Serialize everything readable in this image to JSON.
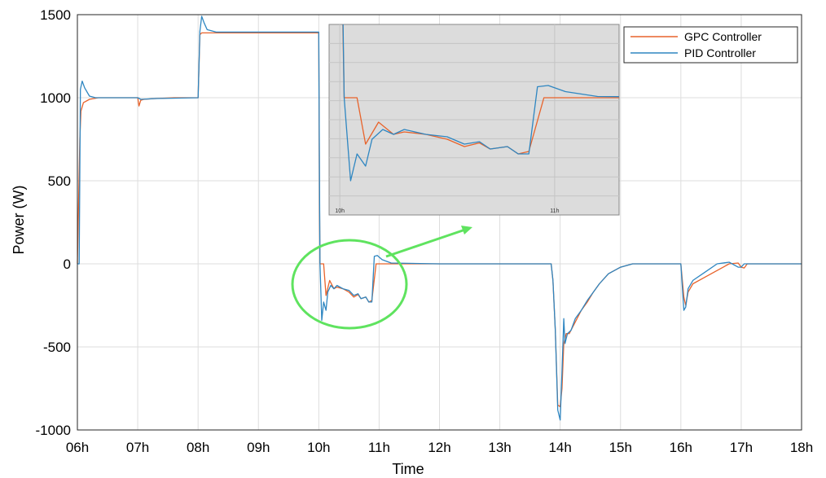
{
  "chart_data": {
    "type": "line",
    "xlabel": "Time",
    "ylabel": "Power (W)",
    "xlim": [
      6,
      18
    ],
    "ylim": [
      -1000,
      1500
    ],
    "x_ticks": [
      6,
      7,
      8,
      9,
      10,
      11,
      12,
      13,
      14,
      15,
      16,
      17,
      18
    ],
    "x_tick_labels": [
      "06h",
      "07h",
      "08h",
      "09h",
      "10h",
      "11h",
      "12h",
      "13h",
      "14h",
      "15h",
      "16h",
      "17h",
      "18h"
    ],
    "y_ticks": [
      -1000,
      -500,
      0,
      500,
      1000,
      1500
    ],
    "y_tick_labels": [
      "-1000",
      "-500",
      "0",
      "500",
      "1000",
      "1500"
    ],
    "grid": true,
    "legend_position": "top-right",
    "series": [
      {
        "name": "GPC Controller",
        "color": "#e8632b",
        "x": [
          6.0,
          6.04,
          6.06,
          6.1,
          6.2,
          6.35,
          6.6,
          7.0,
          7.02,
          7.05,
          7.1,
          7.3,
          7.6,
          7.9,
          8.0,
          8.03,
          8.06,
          8.2,
          9.0,
          9.99,
          10.0,
          10.01,
          10.02,
          10.04,
          10.05,
          10.08,
          10.12,
          10.18,
          10.25,
          10.3,
          10.4,
          10.5,
          10.58,
          10.65,
          10.7,
          10.78,
          10.83,
          10.88,
          10.95,
          11.0,
          11.5,
          12.0,
          13.0,
          13.85,
          13.88,
          13.92,
          13.96,
          14.0,
          14.03,
          14.06,
          14.1,
          14.15,
          14.25,
          14.35,
          14.45,
          14.55,
          14.65,
          14.8,
          15.0,
          15.2,
          15.4,
          15.8,
          16.0,
          16.05,
          16.08,
          16.12,
          16.2,
          16.4,
          16.6,
          16.8,
          16.95,
          17.0,
          17.05,
          17.1,
          17.5,
          18.0
        ],
        "y": [
          0,
          750,
          920,
          970,
          990,
          1000,
          1000,
          1000,
          950,
          985,
          990,
          995,
          1000,
          1000,
          1000,
          1380,
          1390,
          1390,
          1390,
          1390,
          1390,
          500,
          0,
          0,
          0,
          0,
          -190,
          -100,
          -150,
          -140,
          -150,
          -170,
          -200,
          -185,
          -210,
          -200,
          -230,
          -220,
          0,
          0,
          0,
          0,
          0,
          0,
          -100,
          -400,
          -850,
          -860,
          -750,
          -480,
          -420,
          -420,
          -350,
          -280,
          -230,
          -170,
          -120,
          -60,
          -20,
          0,
          0,
          0,
          0,
          -200,
          -250,
          -170,
          -120,
          -80,
          -40,
          0,
          5,
          -20,
          -25,
          0,
          0,
          0
        ]
      },
      {
        "name": "PID Controller",
        "color": "#2e86c1",
        "x": [
          6.0,
          6.03,
          6.05,
          6.08,
          6.12,
          6.2,
          6.3,
          6.6,
          7.0,
          7.05,
          7.3,
          8.0,
          8.03,
          8.06,
          8.1,
          8.15,
          8.3,
          9.0,
          9.99,
          10.0,
          10.01,
          10.02,
          10.05,
          10.08,
          10.12,
          10.15,
          10.2,
          10.25,
          10.3,
          10.4,
          10.5,
          10.58,
          10.65,
          10.7,
          10.78,
          10.83,
          10.88,
          10.92,
          10.97,
          11.05,
          11.2,
          12.0,
          13.0,
          13.85,
          13.88,
          13.92,
          13.96,
          14.0,
          14.03,
          14.06,
          14.08,
          14.12,
          14.18,
          14.25,
          14.35,
          14.45,
          14.55,
          14.65,
          14.8,
          15.0,
          15.2,
          15.4,
          15.8,
          16.0,
          16.05,
          16.08,
          16.12,
          16.2,
          16.4,
          16.6,
          16.8,
          16.95,
          17.0,
          17.05,
          17.1,
          17.5,
          18.0
        ],
        "y": [
          0,
          0,
          1050,
          1100,
          1060,
          1010,
          1000,
          1000,
          1000,
          990,
          995,
          1000,
          1400,
          1490,
          1450,
          1410,
          1395,
          1395,
          1395,
          1395,
          600,
          0,
          -340,
          -230,
          -280,
          -170,
          -130,
          -150,
          -130,
          -150,
          -160,
          -190,
          -180,
          -210,
          -200,
          -230,
          -230,
          45,
          50,
          25,
          5,
          0,
          0,
          0,
          -100,
          -400,
          -880,
          -940,
          -650,
          -330,
          -480,
          -420,
          -400,
          -330,
          -280,
          -220,
          -170,
          -120,
          -60,
          -20,
          0,
          0,
          0,
          0,
          -280,
          -260,
          -150,
          -100,
          -50,
          0,
          10,
          -20,
          -20,
          0,
          0,
          0,
          0
        ]
      }
    ],
    "inset": {
      "xlim": [
        9.95,
        11.3
      ],
      "ylim": [
        -480,
        300
      ],
      "x_tick_labels": [
        "10h",
        "11h"
      ],
      "x_ticks": [
        10,
        11
      ]
    },
    "annotations": {
      "highlight_color": "#5fe35f"
    }
  }
}
